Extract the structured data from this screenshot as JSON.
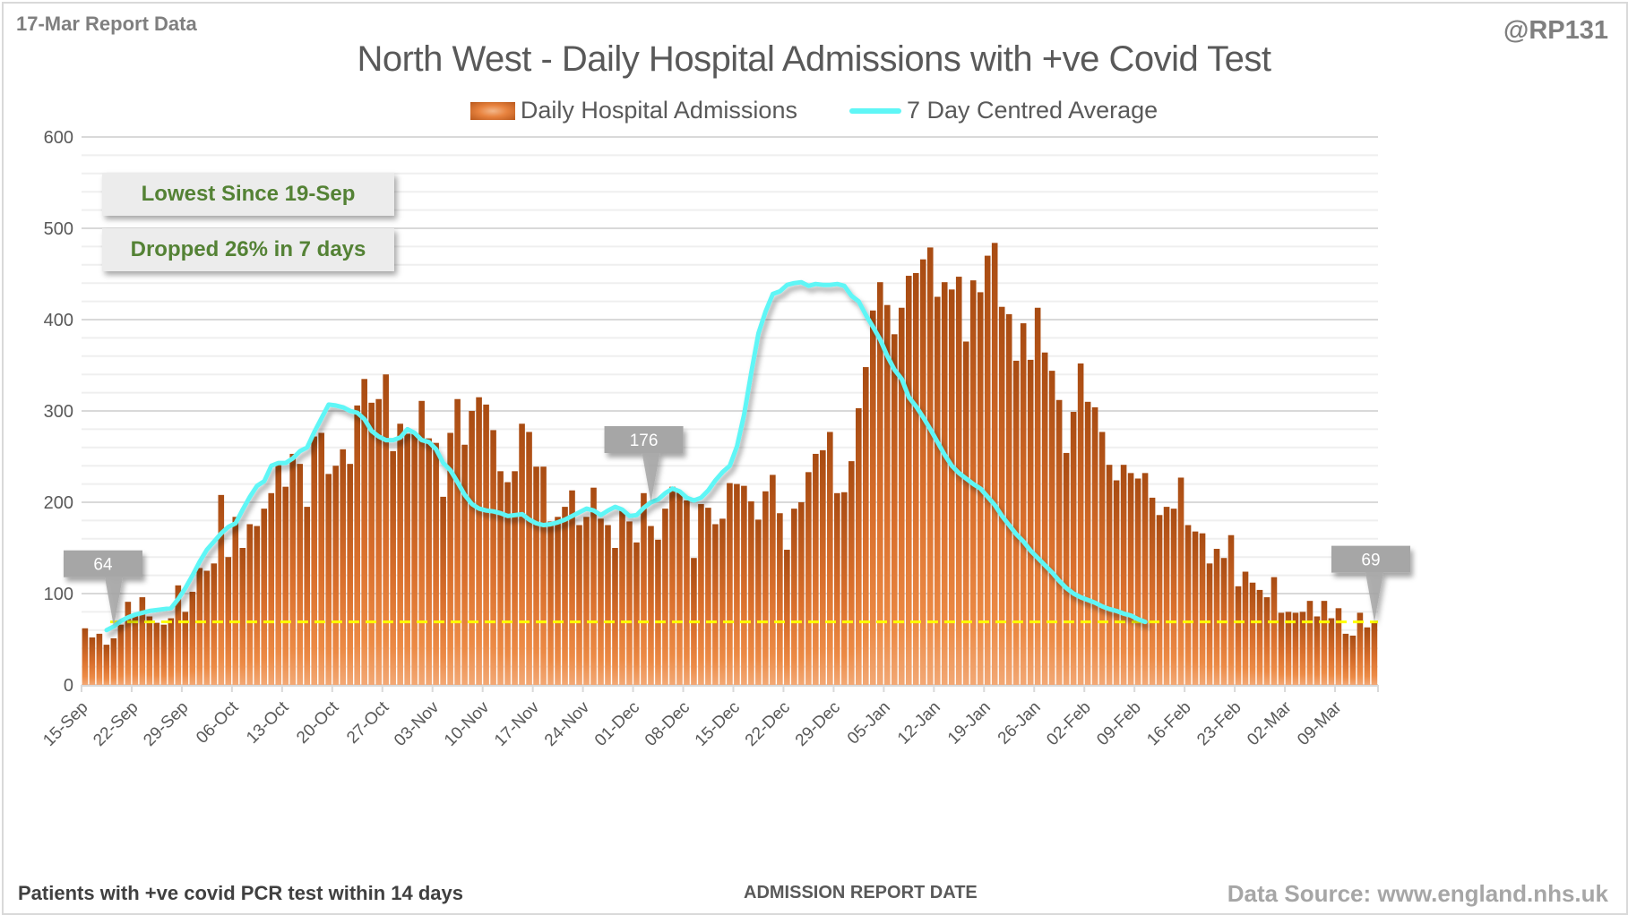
{
  "header": {
    "report_label": "17-Mar Report Data",
    "handle": "@RP131"
  },
  "footer": {
    "note": "Patients with +ve covid PCR test within 14 days",
    "source": "Data Source: www.england.nhs.uk"
  },
  "annotations": {
    "box1": "Lowest Since 19-Sep",
    "box2": "Dropped 26% in 7 days",
    "callouts": [
      {
        "label": "64",
        "index": 4
      },
      {
        "label": "176",
        "index": 79
      },
      {
        "label": "69",
        "index": 180
      }
    ],
    "reference_line": {
      "value": 69,
      "color": "#ffff00",
      "style": "dashed"
    }
  },
  "colors": {
    "bar_top": "#a84b12",
    "bar_bottom": "#f2a875",
    "average_line": "#5ff6f6",
    "note_text": "#548235",
    "callout_bg": "#a6a6a6"
  },
  "chart_data": {
    "type": "bar",
    "title": "North West - Daily Hospital Admissions with +ve Covid Test",
    "xlabel": "ADMISSION REPORT DATE",
    "ylabel": "",
    "ylim": [
      0,
      600
    ],
    "yticks": [
      0,
      100,
      200,
      300,
      400,
      500,
      600
    ],
    "minor_grid_step": 20,
    "grid": true,
    "legend_position": "top-center",
    "start_date": "15-Sep",
    "xtick_labels": [
      "15-Sep",
      "22-Sep",
      "29-Sep",
      "06-Oct",
      "13-Oct",
      "20-Oct",
      "27-Oct",
      "03-Nov",
      "10-Nov",
      "17-Nov",
      "24-Nov",
      "01-Dec",
      "08-Dec",
      "15-Dec",
      "22-Dec",
      "29-Dec",
      "05-Jan",
      "12-Jan",
      "19-Jan",
      "26-Jan",
      "02-Feb",
      "09-Feb",
      "16-Feb",
      "23-Feb",
      "02-Mar",
      "09-Mar"
    ],
    "xtick_every_days": 7,
    "series": [
      {
        "name": "Daily Hospital Admissions",
        "type": "bar",
        "values": [
          62,
          52,
          56,
          44,
          51,
          66,
          91,
          76,
          96,
          75,
          68,
          66,
          73,
          109,
          80,
          102,
          128,
          125,
          133,
          208,
          140,
          184,
          150,
          176,
          174,
          193,
          210,
          244,
          217,
          253,
          242,
          195,
          272,
          276,
          231,
          240,
          258,
          242,
          306,
          335,
          309,
          313,
          340,
          256,
          286,
          275,
          276,
          311,
          270,
          265,
          206,
          276,
          313,
          263,
          300,
          315,
          307,
          279,
          234,
          222,
          234,
          286,
          277,
          239,
          239,
          179,
          184,
          195,
          213,
          175,
          184,
          216,
          182,
          175,
          150,
          192,
          179,
          156,
          210,
          174,
          159,
          193,
          217,
          211,
          202,
          139,
          198,
          194,
          176,
          182,
          221,
          220,
          218,
          201,
          181,
          212,
          230,
          188,
          148,
          193,
          200,
          233,
          253,
          257,
          277,
          210,
          211,
          245,
          303,
          348,
          410,
          441,
          416,
          384,
          413,
          448,
          451,
          466,
          479,
          425,
          441,
          433,
          447,
          376,
          443,
          430,
          470,
          484,
          414,
          406,
          355,
          396,
          356,
          413,
          364,
          344,
          312,
          254,
          299,
          352,
          310,
          304,
          277,
          241,
          224,
          241,
          232,
          226,
          232,
          205,
          186,
          195,
          193,
          227,
          175,
          168,
          166,
          133,
          149,
          139,
          164,
          108,
          124,
          112,
          104,
          96,
          118,
          79,
          80,
          79,
          80,
          92,
          75,
          92,
          73,
          84,
          56,
          54,
          79,
          63,
          69
        ]
      },
      {
        "name": "7 Day Centred Average",
        "type": "line",
        "start_index": 3,
        "values": [
          60,
          64,
          70,
          74,
          77,
          79,
          81,
          82,
          83,
          84,
          94,
          106,
          120,
          135,
          148,
          157,
          166,
          173,
          177,
          192,
          206,
          218,
          223,
          240,
          243,
          243,
          248,
          256,
          260,
          277,
          292,
          307,
          306,
          304,
          300,
          298,
          291,
          278,
          272,
          268,
          268,
          271,
          280,
          276,
          268,
          266,
          258,
          243,
          235,
          222,
          208,
          198,
          193,
          191,
          190,
          188,
          185,
          186,
          187,
          181,
          177,
          175,
          176,
          178,
          181,
          185,
          189,
          193,
          191,
          186,
          191,
          195,
          192,
          185,
          186,
          194,
          200,
          203,
          210,
          215,
          212,
          205,
          202,
          205,
          213,
          224,
          233,
          240,
          261,
          296,
          342,
          385,
          409,
          428,
          431,
          438,
          440,
          441,
          437,
          439,
          438,
          438,
          439,
          437,
          426,
          420,
          405,
          392,
          378,
          360,
          345,
          335,
          315,
          305,
          293,
          280,
          266,
          252,
          240,
          232,
          226,
          220,
          215,
          206,
          197,
          185,
          175,
          165,
          157,
          147,
          139,
          131,
          123,
          114,
          106,
          100,
          96,
          93,
          90,
          86,
          83,
          81,
          78,
          76,
          72,
          69
        ]
      }
    ]
  }
}
